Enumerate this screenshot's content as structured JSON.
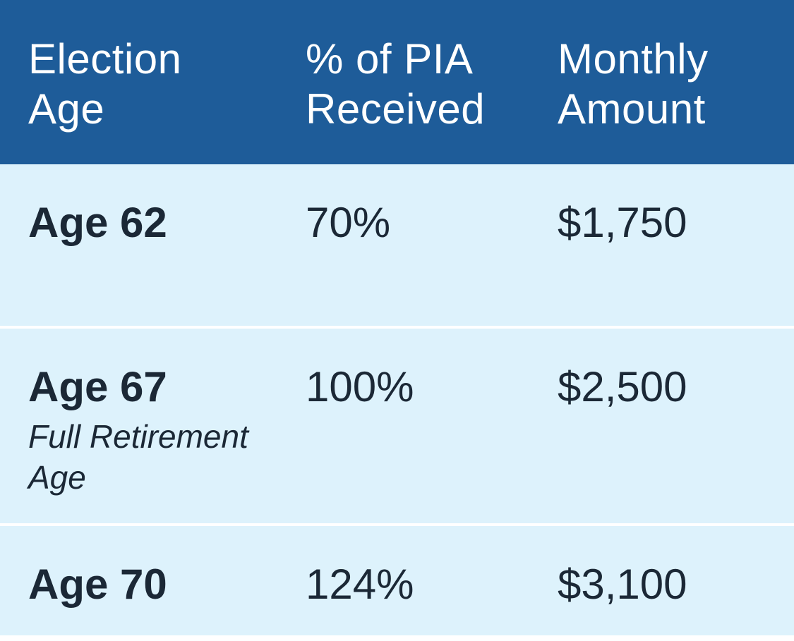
{
  "colors": {
    "header_bg": "#1E5C99",
    "row_bg": "#DDF2FC",
    "divider": "#FFFFFF",
    "header_text": "#FFFFFF",
    "body_text": "#1B2836"
  },
  "table": {
    "headers": [
      {
        "line1": "Election",
        "line2": "Age"
      },
      {
        "line1": "% of PIA",
        "line2": "Received"
      },
      {
        "line1": "Monthly",
        "line2": "Amount"
      }
    ],
    "rows": [
      {
        "age": "Age 62",
        "note": "",
        "pia": "70%",
        "amount": "$1,750"
      },
      {
        "age": "Age 67",
        "note": "Full Retirement Age",
        "pia": "100%",
        "amount": "$2,500"
      },
      {
        "age": "Age 70",
        "note": "",
        "pia": "124%",
        "amount": "$3,100"
      }
    ]
  },
  "chart_data": {
    "type": "table",
    "title": "",
    "columns": [
      "Election Age",
      "% of PIA Received",
      "Monthly Amount"
    ],
    "rows": [
      [
        "Age 62",
        "70%",
        "$1,750"
      ],
      [
        "Age 67 (Full Retirement Age)",
        "100%",
        "$2,500"
      ],
      [
        "Age 70",
        "124%",
        "$3,100"
      ]
    ]
  }
}
